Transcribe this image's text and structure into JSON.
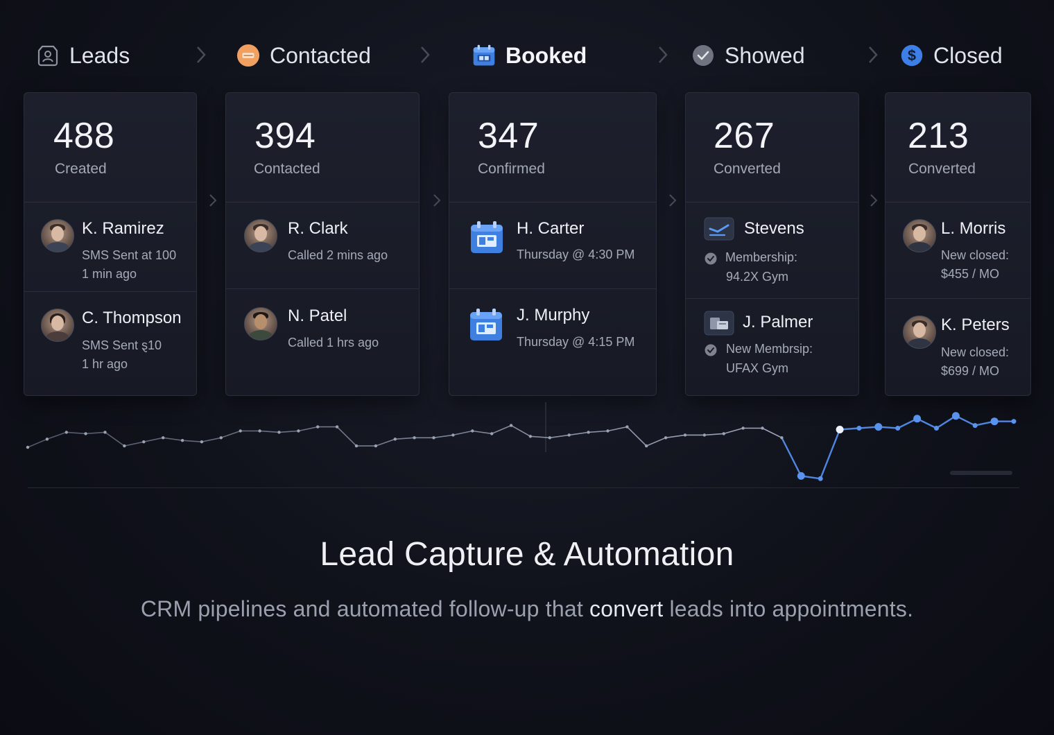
{
  "stages": [
    {
      "label": "Leads",
      "icon": "contact-card-icon",
      "bold": false
    },
    {
      "label": "Contacted",
      "icon": "chat-bubble-icon",
      "bold": false
    },
    {
      "label": "Booked",
      "icon": "calendar-icon",
      "bold": true
    },
    {
      "label": "Showed",
      "icon": "check-circle-icon",
      "bold": false
    },
    {
      "label": "Closed",
      "icon": "dollar-circle-icon",
      "bold": false
    }
  ],
  "cards": [
    {
      "count": "488",
      "count_label": "Created",
      "entries": [
        {
          "name": "K. Ramirez",
          "line1": "SMS Sent at 100",
          "line2": "1 min ago"
        },
        {
          "name": "C. Thompson",
          "line1": "SMS Sent ȿ10",
          "line2": "1 hr ago"
        }
      ]
    },
    {
      "count": "394",
      "count_label": "Contacted",
      "entries": [
        {
          "name": "R. Clark",
          "line1": "Called 2 mins ago"
        },
        {
          "name": "N. Patel",
          "line1": "Called 1 hrs ago"
        }
      ]
    },
    {
      "count": "347",
      "count_label": "Confirmed",
      "entries": [
        {
          "name": "H. Carter",
          "line1": "Thursday @ 4:30 PM"
        },
        {
          "name": "J. Murphy",
          "line1": "Thursday @ 4:15 PM"
        }
      ]
    },
    {
      "count": "267",
      "count_label": "Converted",
      "entries": [
        {
          "name": "Stevens",
          "line1": "Membership:",
          "line2": "94.2X Gym"
        },
        {
          "name": "J. Palmer",
          "line1": "New Membrsip:",
          "line2": "UFAX Gym"
        }
      ]
    },
    {
      "count": "213",
      "count_label": "Converted",
      "entries": [
        {
          "name": "L. Morris",
          "line1": "New closed:",
          "line2": "$455 / MO"
        },
        {
          "name": "K. Peters",
          "line1": "New closed:",
          "line2": "$699 / MO"
        }
      ]
    }
  ],
  "chart_data": {
    "type": "line",
    "title": "",
    "xlabel": "",
    "ylabel": "",
    "grid": false,
    "series": [
      {
        "values": [
          2,
          8,
          13,
          12,
          13,
          3,
          6,
          9,
          7,
          6,
          9,
          14,
          14,
          13,
          14,
          17,
          17,
          3,
          3,
          8,
          9,
          9,
          11,
          14,
          12,
          18,
          10,
          9,
          11,
          13,
          14,
          17,
          3,
          9,
          11,
          11,
          12,
          16,
          16,
          9,
          -19,
          -21,
          15,
          16,
          17,
          16,
          23,
          16,
          25,
          18,
          21,
          21
        ]
      }
    ],
    "colors": {
      "muted_line": "#9aa3b5",
      "accent_line": "#4e86e0",
      "accent_point": "#5a93ee"
    }
  },
  "headline": "Lead Capture & Automation",
  "subline": {
    "before": "CRM pipelines and automated follow-up that ",
    "emphasis": "convert",
    "after": " leads into appointments."
  }
}
